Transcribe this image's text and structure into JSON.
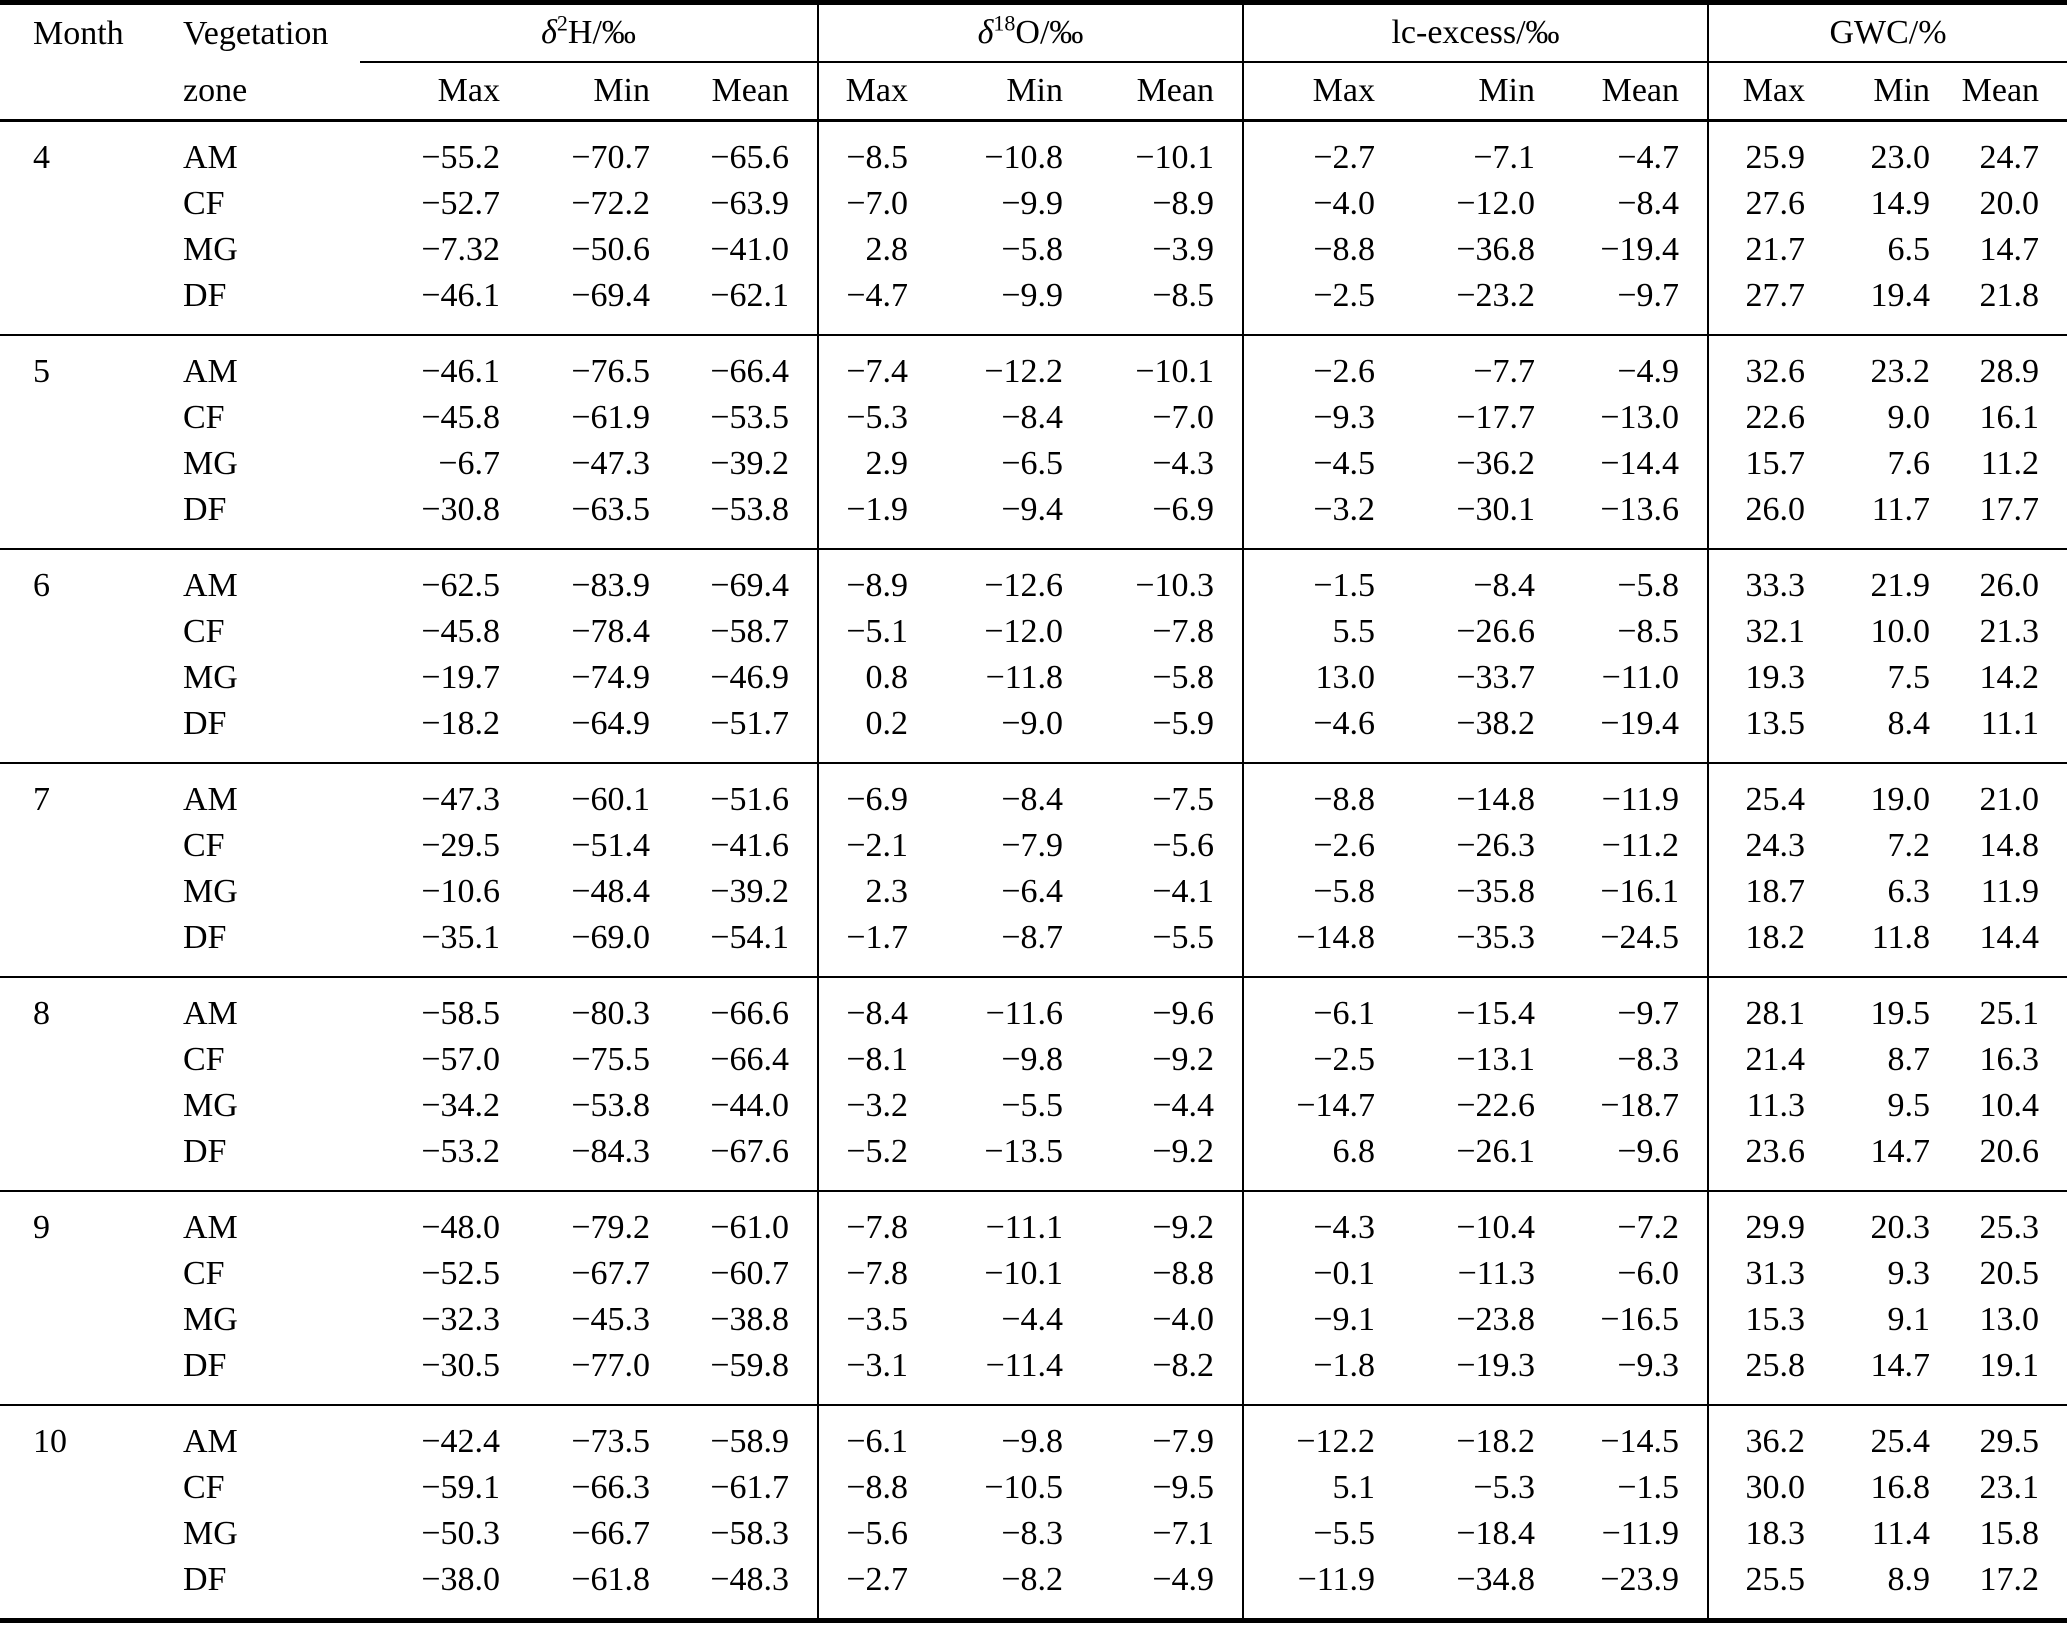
{
  "table": {
    "headers": {
      "month": "Month",
      "vegetation_line1": "Vegetation",
      "vegetation_line2": "zone",
      "sub": [
        "Max",
        "Min",
        "Mean"
      ]
    },
    "col_groups": [
      {
        "pre": "δ",
        "sup": "2",
        "post": "H/‰"
      },
      {
        "pre": "δ",
        "sup": "18",
        "post": "O/‰"
      },
      {
        "pre": "",
        "sup": "",
        "post": "lc-excess/‰"
      },
      {
        "pre": "",
        "sup": "",
        "post": "GWC/%"
      }
    ],
    "months": [
      {
        "month": "4",
        "rows": [
          {
            "zone": "AM",
            "values": [
              "−55.2",
              "−70.7",
              "−65.6",
              "−8.5",
              "−10.8",
              "−10.1",
              "−2.7",
              "−7.1",
              "−4.7",
              "25.9",
              "23.0",
              "24.7"
            ]
          },
          {
            "zone": "CF",
            "values": [
              "−52.7",
              "−72.2",
              "−63.9",
              "−7.0",
              "−9.9",
              "−8.9",
              "−4.0",
              "−12.0",
              "−8.4",
              "27.6",
              "14.9",
              "20.0"
            ]
          },
          {
            "zone": "MG",
            "values": [
              "−7.32",
              "−50.6",
              "−41.0",
              "2.8",
              "−5.8",
              "−3.9",
              "−8.8",
              "−36.8",
              "−19.4",
              "21.7",
              "6.5",
              "14.7"
            ]
          },
          {
            "zone": "DF",
            "values": [
              "−46.1",
              "−69.4",
              "−62.1",
              "−4.7",
              "−9.9",
              "−8.5",
              "−2.5",
              "−23.2",
              "−9.7",
              "27.7",
              "19.4",
              "21.8"
            ]
          }
        ]
      },
      {
        "month": "5",
        "rows": [
          {
            "zone": "AM",
            "values": [
              "−46.1",
              "−76.5",
              "−66.4",
              "−7.4",
              "−12.2",
              "−10.1",
              "−2.6",
              "−7.7",
              "−4.9",
              "32.6",
              "23.2",
              "28.9"
            ]
          },
          {
            "zone": "CF",
            "values": [
              "−45.8",
              "−61.9",
              "−53.5",
              "−5.3",
              "−8.4",
              "−7.0",
              "−9.3",
              "−17.7",
              "−13.0",
              "22.6",
              "9.0",
              "16.1"
            ]
          },
          {
            "zone": "MG",
            "values": [
              "−6.7",
              "−47.3",
              "−39.2",
              "2.9",
              "−6.5",
              "−4.3",
              "−4.5",
              "−36.2",
              "−14.4",
              "15.7",
              "7.6",
              "11.2"
            ]
          },
          {
            "zone": "DF",
            "values": [
              "−30.8",
              "−63.5",
              "−53.8",
              "−1.9",
              "−9.4",
              "−6.9",
              "−3.2",
              "−30.1",
              "−13.6",
              "26.0",
              "11.7",
              "17.7"
            ]
          }
        ]
      },
      {
        "month": "6",
        "rows": [
          {
            "zone": "AM",
            "values": [
              "−62.5",
              "−83.9",
              "−69.4",
              "−8.9",
              "−12.6",
              "−10.3",
              "−1.5",
              "−8.4",
              "−5.8",
              "33.3",
              "21.9",
              "26.0"
            ]
          },
          {
            "zone": "CF",
            "values": [
              "−45.8",
              "−78.4",
              "−58.7",
              "−5.1",
              "−12.0",
              "−7.8",
              "5.5",
              "−26.6",
              "−8.5",
              "32.1",
              "10.0",
              "21.3"
            ]
          },
          {
            "zone": "MG",
            "values": [
              "−19.7",
              "−74.9",
              "−46.9",
              "0.8",
              "−11.8",
              "−5.8",
              "13.0",
              "−33.7",
              "−11.0",
              "19.3",
              "7.5",
              "14.2"
            ]
          },
          {
            "zone": "DF",
            "values": [
              "−18.2",
              "−64.9",
              "−51.7",
              "0.2",
              "−9.0",
              "−5.9",
              "−4.6",
              "−38.2",
              "−19.4",
              "13.5",
              "8.4",
              "11.1"
            ]
          }
        ]
      },
      {
        "month": "7",
        "rows": [
          {
            "zone": "AM",
            "values": [
              "−47.3",
              "−60.1",
              "−51.6",
              "−6.9",
              "−8.4",
              "−7.5",
              "−8.8",
              "−14.8",
              "−11.9",
              "25.4",
              "19.0",
              "21.0"
            ]
          },
          {
            "zone": "CF",
            "values": [
              "−29.5",
              "−51.4",
              "−41.6",
              "−2.1",
              "−7.9",
              "−5.6",
              "−2.6",
              "−26.3",
              "−11.2",
              "24.3",
              "7.2",
              "14.8"
            ]
          },
          {
            "zone": "MG",
            "values": [
              "−10.6",
              "−48.4",
              "−39.2",
              "2.3",
              "−6.4",
              "−4.1",
              "−5.8",
              "−35.8",
              "−16.1",
              "18.7",
              "6.3",
              "11.9"
            ]
          },
          {
            "zone": "DF",
            "values": [
              "−35.1",
              "−69.0",
              "−54.1",
              "−1.7",
              "−8.7",
              "−5.5",
              "−14.8",
              "−35.3",
              "−24.5",
              "18.2",
              "11.8",
              "14.4"
            ]
          }
        ]
      },
      {
        "month": "8",
        "rows": [
          {
            "zone": "AM",
            "values": [
              "−58.5",
              "−80.3",
              "−66.6",
              "−8.4",
              "−11.6",
              "−9.6",
              "−6.1",
              "−15.4",
              "−9.7",
              "28.1",
              "19.5",
              "25.1"
            ]
          },
          {
            "zone": "CF",
            "values": [
              "−57.0",
              "−75.5",
              "−66.4",
              "−8.1",
              "−9.8",
              "−9.2",
              "−2.5",
              "−13.1",
              "−8.3",
              "21.4",
              "8.7",
              "16.3"
            ]
          },
          {
            "zone": "MG",
            "values": [
              "−34.2",
              "−53.8",
              "−44.0",
              "−3.2",
              "−5.5",
              "−4.4",
              "−14.7",
              "−22.6",
              "−18.7",
              "11.3",
              "9.5",
              "10.4"
            ]
          },
          {
            "zone": "DF",
            "values": [
              "−53.2",
              "−84.3",
              "−67.6",
              "−5.2",
              "−13.5",
              "−9.2",
              "6.8",
              "−26.1",
              "−9.6",
              "23.6",
              "14.7",
              "20.6"
            ]
          }
        ]
      },
      {
        "month": "9",
        "rows": [
          {
            "zone": "AM",
            "values": [
              "−48.0",
              "−79.2",
              "−61.0",
              "−7.8",
              "−11.1",
              "−9.2",
              "−4.3",
              "−10.4",
              "−7.2",
              "29.9",
              "20.3",
              "25.3"
            ]
          },
          {
            "zone": "CF",
            "values": [
              "−52.5",
              "−67.7",
              "−60.7",
              "−7.8",
              "−10.1",
              "−8.8",
              "−0.1",
              "−11.3",
              "−6.0",
              "31.3",
              "9.3",
              "20.5"
            ]
          },
          {
            "zone": "MG",
            "values": [
              "−32.3",
              "−45.3",
              "−38.8",
              "−3.5",
              "−4.4",
              "−4.0",
              "−9.1",
              "−23.8",
              "−16.5",
              "15.3",
              "9.1",
              "13.0"
            ]
          },
          {
            "zone": "DF",
            "values": [
              "−30.5",
              "−77.0",
              "−59.8",
              "−3.1",
              "−11.4",
              "−8.2",
              "−1.8",
              "−19.3",
              "−9.3",
              "25.8",
              "14.7",
              "19.1"
            ]
          }
        ]
      },
      {
        "month": "10",
        "rows": [
          {
            "zone": "AM",
            "values": [
              "−42.4",
              "−73.5",
              "−58.9",
              "−6.1",
              "−9.8",
              "−7.9",
              "−12.2",
              "−18.2",
              "−14.5",
              "36.2",
              "25.4",
              "29.5"
            ]
          },
          {
            "zone": "CF",
            "values": [
              "−59.1",
              "−66.3",
              "−61.7",
              "−8.8",
              "−10.5",
              "−9.5",
              "5.1",
              "−5.3",
              "−1.5",
              "30.0",
              "16.8",
              "23.1"
            ]
          },
          {
            "zone": "MG",
            "values": [
              "−50.3",
              "−66.7",
              "−58.3",
              "−5.6",
              "−8.3",
              "−7.1",
              "−5.5",
              "−18.4",
              "−11.9",
              "18.3",
              "11.4",
              "15.8"
            ]
          },
          {
            "zone": "DF",
            "values": [
              "−38.0",
              "−61.8",
              "−48.3",
              "−2.7",
              "−8.2",
              "−4.9",
              "−11.9",
              "−34.8",
              "−23.9",
              "25.5",
              "8.9",
              "17.2"
            ]
          }
        ]
      }
    ]
  }
}
